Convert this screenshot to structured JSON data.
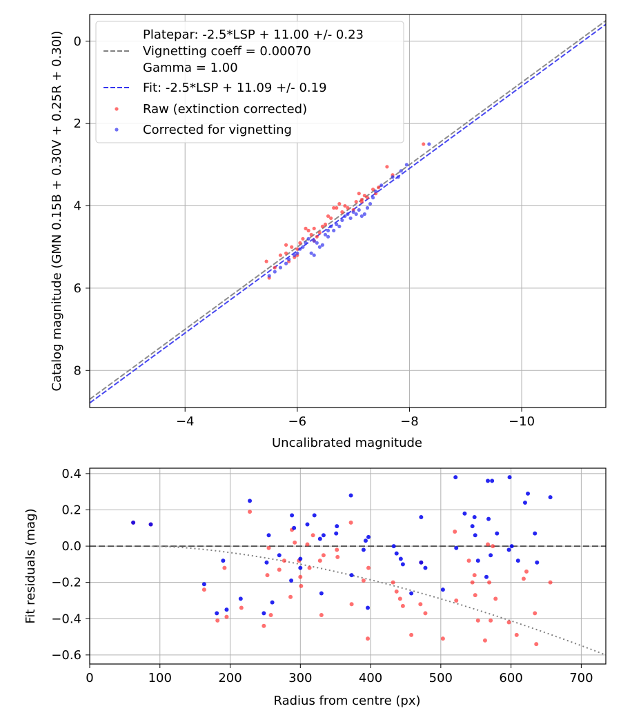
{
  "chart_data": [
    {
      "type": "scatter",
      "xlabel": "Uncalibrated magnitude",
      "ylabel": "Catalog magnitude (GMN 0.15B + 0.30V + 0.25R + 0.30I)",
      "xlim": [
        -2.3,
        -11.5
      ],
      "ylim": [
        8.9,
        -0.65
      ],
      "x_ticks": [
        -4,
        -6,
        -8,
        -10
      ],
      "x_tick_labels": [
        "−4",
        "−6",
        "−8",
        "−10"
      ],
      "y_ticks": [
        0,
        2,
        4,
        6,
        8
      ],
      "y_tick_labels": [
        "0",
        "2",
        "4",
        "6",
        "8"
      ],
      "grid": true,
      "legend_position": "top-left",
      "legend": {
        "platepar_line1": "Platepar: -2.5*LSP + 11.00 +/- 0.23",
        "platepar_line2": "Vignetting coeff = 0.00070",
        "platepar_line3": "Gamma = 1.00",
        "fit": "Fit: -2.5*LSP + 11.09 +/- 0.19",
        "raw": "Raw (extinction corrected)",
        "corrected": "Corrected for vignetting"
      },
      "lines": [
        {
          "name": "Platepar",
          "slope": -2.5,
          "intercept": 11.0,
          "color": "#808080",
          "style": "dashed"
        },
        {
          "name": "Fit",
          "slope": -2.5,
          "intercept": 11.09,
          "color": "#3333ee",
          "style": "dashed"
        }
      ],
      "series": [
        {
          "name": "Raw (extinction corrected)",
          "color": "#ff3333",
          "points": [
            [
              -5.45,
              5.35
            ],
            [
              -5.5,
              5.75
            ],
            [
              -5.6,
              5.5
            ],
            [
              -5.7,
              5.2
            ],
            [
              -5.8,
              5.15
            ],
            [
              -5.8,
              4.95
            ],
            [
              -5.85,
              5.35
            ],
            [
              -5.9,
              5.0
            ],
            [
              -5.95,
              5.25
            ],
            [
              -6.0,
              5.2
            ],
            [
              -6.0,
              5.05
            ],
            [
              -6.05,
              4.9
            ],
            [
              -6.1,
              4.8
            ],
            [
              -6.15,
              4.55
            ],
            [
              -6.2,
              4.6
            ],
            [
              -6.25,
              4.7
            ],
            [
              -6.3,
              4.55
            ],
            [
              -6.35,
              4.75
            ],
            [
              -6.4,
              4.65
            ],
            [
              -6.45,
              4.5
            ],
            [
              -6.5,
              4.45
            ],
            [
              -6.6,
              4.3
            ],
            [
              -6.7,
              4.05
            ],
            [
              -6.75,
              3.95
            ],
            [
              -6.8,
              4.15
            ],
            [
              -6.85,
              4.0
            ],
            [
              -6.9,
              4.05
            ],
            [
              -7.0,
              4.1
            ],
            [
              -7.05,
              3.9
            ],
            [
              -7.1,
              3.7
            ],
            [
              -7.15,
              3.85
            ],
            [
              -7.2,
              3.75
            ],
            [
              -7.25,
              3.8
            ],
            [
              -7.35,
              3.6
            ],
            [
              -7.4,
              3.7
            ],
            [
              -7.45,
              3.55
            ],
            [
              -7.6,
              3.05
            ],
            [
              -7.7,
              3.25
            ],
            [
              -8.25,
              2.5
            ],
            [
              -7.15,
              3.9
            ],
            [
              -6.55,
              4.25
            ],
            [
              -6.3,
              4.85
            ],
            [
              -6.65,
              4.05
            ]
          ]
        },
        {
          "name": "Corrected for vignetting",
          "color": "#3333ee",
          "points": [
            [
              -5.5,
              5.7
            ],
            [
              -5.6,
              5.6
            ],
            [
              -5.7,
              5.5
            ],
            [
              -5.8,
              5.4
            ],
            [
              -5.85,
              5.3
            ],
            [
              -5.95,
              5.2
            ],
            [
              -6.0,
              5.15
            ],
            [
              -6.05,
              5.05
            ],
            [
              -6.1,
              5.0
            ],
            [
              -6.15,
              4.9
            ],
            [
              -6.2,
              4.8
            ],
            [
              -6.3,
              4.85
            ],
            [
              -6.35,
              4.9
            ],
            [
              -6.4,
              5.0
            ],
            [
              -6.45,
              4.95
            ],
            [
              -6.5,
              4.7
            ],
            [
              -6.55,
              4.6
            ],
            [
              -6.6,
              4.5
            ],
            [
              -6.65,
              4.6
            ],
            [
              -6.7,
              4.45
            ],
            [
              -6.75,
              4.5
            ],
            [
              -6.8,
              4.35
            ],
            [
              -6.85,
              4.25
            ],
            [
              -6.9,
              4.2
            ],
            [
              -6.95,
              4.3
            ],
            [
              -7.0,
              4.15
            ],
            [
              -7.05,
              4.2
            ],
            [
              -7.1,
              4.1
            ],
            [
              -7.15,
              4.25
            ],
            [
              -7.2,
              4.2
            ],
            [
              -7.25,
              4.05
            ],
            [
              -7.3,
              3.95
            ],
            [
              -7.35,
              3.8
            ],
            [
              -7.4,
              3.65
            ],
            [
              -7.5,
              3.5
            ],
            [
              -7.7,
              3.3
            ],
            [
              -7.8,
              3.3
            ],
            [
              -7.85,
              3.15
            ],
            [
              -7.95,
              3.0
            ],
            [
              -8.35,
              2.5
            ],
            [
              -6.3,
              5.2
            ],
            [
              -6.25,
              5.15
            ],
            [
              -6.55,
              4.75
            ]
          ]
        }
      ]
    },
    {
      "type": "scatter",
      "xlabel": "Radius from centre (px)",
      "ylabel": "Fit residuals (mag)",
      "xlim": [
        0,
        735
      ],
      "ylim": [
        -0.65,
        0.43
      ],
      "x_ticks": [
        0,
        100,
        200,
        300,
        400,
        500,
        600,
        700
      ],
      "x_tick_labels": [
        "0",
        "100",
        "200",
        "300",
        "400",
        "500",
        "600",
        "700"
      ],
      "y_ticks": [
        0.4,
        0.2,
        0.0,
        -0.2,
        -0.4,
        -0.6
      ],
      "y_tick_labels": [
        "0.4",
        "0.2",
        "0.0",
        "−0.2",
        "−0.4",
        "−0.6"
      ],
      "grid": true,
      "zero_line": {
        "y": 0.0,
        "color": "#555555",
        "style": "dashed"
      },
      "vignetting_curve": {
        "coeff": 0.0007,
        "color": "#808080",
        "style": "dotted",
        "x_start": 90
      },
      "series": [
        {
          "name": "Raw (extinction corrected)",
          "color": "#ff3333",
          "points": [
            [
              62,
              0.13
            ],
            [
              87,
              0.12
            ],
            [
              163,
              -0.24
            ],
            [
              182,
              -0.41
            ],
            [
              192,
              -0.12
            ],
            [
              195,
              -0.39
            ],
            [
              216,
              -0.34
            ],
            [
              228,
              0.19
            ],
            [
              248,
              -0.44
            ],
            [
              253,
              -0.16
            ],
            [
              255,
              -0.01
            ],
            [
              258,
              -0.38
            ],
            [
              270,
              -0.13
            ],
            [
              277,
              -0.08
            ],
            [
              286,
              -0.28
            ],
            [
              288,
              0.09
            ],
            [
              292,
              0.02
            ],
            [
              298,
              -0.08
            ],
            [
              300,
              -0.17
            ],
            [
              301,
              -0.22
            ],
            [
              310,
              0.01
            ],
            [
              313,
              -0.12
            ],
            [
              318,
              0.06
            ],
            [
              328,
              -0.08
            ],
            [
              330,
              -0.38
            ],
            [
              333,
              -0.05
            ],
            [
              352,
              -0.02
            ],
            [
              353,
              -0.06
            ],
            [
              372,
              0.13
            ],
            [
              373,
              -0.32
            ],
            [
              390,
              -0.19
            ],
            [
              396,
              -0.51
            ],
            [
              397,
              -0.12
            ],
            [
              432,
              -0.2
            ],
            [
              437,
              -0.25
            ],
            [
              442,
              -0.29
            ],
            [
              446,
              -0.33
            ],
            [
              458,
              -0.49
            ],
            [
              471,
              -0.32
            ],
            [
              472,
              -0.09
            ],
            [
              478,
              -0.37
            ],
            [
              503,
              -0.51
            ],
            [
              520,
              0.08
            ],
            [
              522,
              -0.3
            ],
            [
              545,
              -0.2
            ],
            [
              549,
              -0.27
            ],
            [
              553,
              -0.41
            ],
            [
              563,
              -0.52
            ],
            [
              567,
              0.01
            ],
            [
              569,
              -0.2
            ],
            [
              571,
              -0.41
            ],
            [
              574,
              0.0
            ],
            [
              578,
              -0.29
            ],
            [
              597,
              -0.42
            ],
            [
              608,
              -0.49
            ],
            [
              618,
              -0.18
            ],
            [
              622,
              -0.14
            ],
            [
              634,
              -0.37
            ],
            [
              636,
              -0.54
            ],
            [
              656,
              -0.2
            ],
            [
              548,
              -0.16
            ],
            [
              540,
              -0.08
            ]
          ]
        },
        {
          "name": "Corrected for vignetting",
          "color": "#0000ee",
          "points": [
            [
              62,
              0.13
            ],
            [
              87,
              0.12
            ],
            [
              163,
              -0.21
            ],
            [
              181,
              -0.37
            ],
            [
              190,
              -0.08
            ],
            [
              195,
              -0.35
            ],
            [
              215,
              -0.29
            ],
            [
              228,
              0.25
            ],
            [
              248,
              -0.37
            ],
            [
              252,
              -0.09
            ],
            [
              255,
              0.06
            ],
            [
              260,
              -0.31
            ],
            [
              270,
              -0.05
            ],
            [
              287,
              -0.19
            ],
            [
              288,
              0.17
            ],
            [
              291,
              0.1
            ],
            [
              300,
              -0.07
            ],
            [
              300,
              -0.12
            ],
            [
              310,
              0.12
            ],
            [
              320,
              0.17
            ],
            [
              328,
              0.04
            ],
            [
              330,
              -0.26
            ],
            [
              333,
              0.06
            ],
            [
              351,
              0.07
            ],
            [
              352,
              0.11
            ],
            [
              372,
              0.28
            ],
            [
              373,
              -0.16
            ],
            [
              390,
              -0.02
            ],
            [
              393,
              0.03
            ],
            [
              396,
              -0.34
            ],
            [
              397,
              0.05
            ],
            [
              433,
              -0.0
            ],
            [
              437,
              -0.04
            ],
            [
              443,
              -0.07
            ],
            [
              446,
              -0.1
            ],
            [
              458,
              -0.26
            ],
            [
              472,
              0.16
            ],
            [
              472,
              -0.09
            ],
            [
              478,
              -0.12
            ],
            [
              503,
              -0.24
            ],
            [
              521,
              0.38
            ],
            [
              522,
              -0.01
            ],
            [
              534,
              0.18
            ],
            [
              545,
              0.11
            ],
            [
              549,
              0.06
            ],
            [
              553,
              -0.08
            ],
            [
              565,
              -0.17
            ],
            [
              567,
              0.36
            ],
            [
              568,
              0.15
            ],
            [
              571,
              -0.05
            ],
            [
              573,
              0.36
            ],
            [
              580,
              0.07
            ],
            [
              597,
              -0.02
            ],
            [
              598,
              0.38
            ],
            [
              601,
              0.0
            ],
            [
              610,
              -0.08
            ],
            [
              620,
              0.24
            ],
            [
              624,
              0.29
            ],
            [
              634,
              0.07
            ],
            [
              637,
              -0.09
            ],
            [
              656,
              0.27
            ],
            [
              548,
              0.16
            ]
          ]
        }
      ]
    }
  ]
}
